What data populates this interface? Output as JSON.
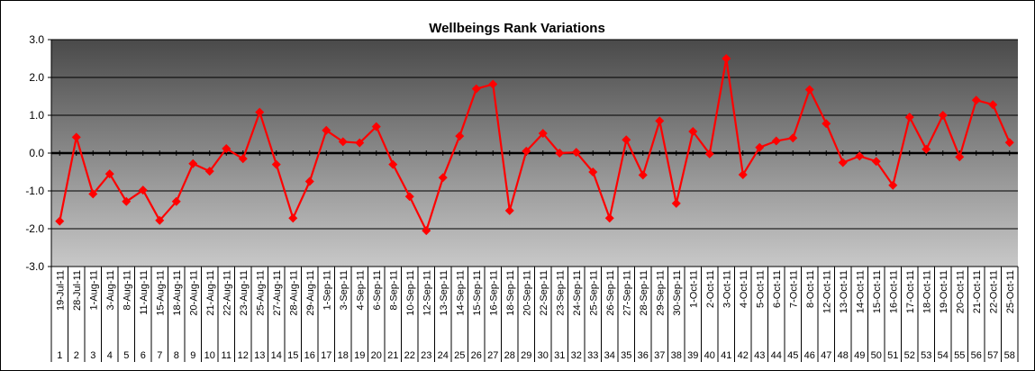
{
  "chart_data": {
    "type": "line",
    "title": "Wellbeings Rank Variations",
    "ylim": [
      -3.0,
      3.0
    ],
    "yticks": [
      "3.0",
      "2.0",
      "1.0",
      "0.0",
      "-1.0",
      "-2.0",
      "-3.0"
    ],
    "grid": true,
    "legend": "none",
    "colors": {
      "line": "#ff0000",
      "marker": "#ff0000",
      "grid": "#000000",
      "zero_line": "#000000",
      "plot_top": "#4a4a4a",
      "plot_bottom": "#c8c8c8"
    },
    "categories": [
      "19-Jul-11",
      "28-Jul-11",
      "1-Aug-11",
      "3-Aug-11",
      "8-Aug-11",
      "11-Aug-11",
      "15-Aug-11",
      "18-Aug-11",
      "20-Aug-11",
      "21-Aug-11",
      "22-Aug-11",
      "23-Aug-11",
      "25-Aug-11",
      "27-Aug-11",
      "28-Aug-11",
      "29-Aug-11",
      "1-Sep-11",
      "3-Sep-11",
      "4-Sep-11",
      "6-Sep-11",
      "8-Sep-11",
      "10-Sep-11",
      "12-Sep-11",
      "13-Sep-11",
      "14-Sep-11",
      "15-Sep-11",
      "16-Sep-11",
      "18-Sep-11",
      "20-Sep-11",
      "22-Sep-11",
      "23-Sep-11",
      "24-Sep-11",
      "25-Sep-11",
      "26-Sep-11",
      "27-Sep-11",
      "28-Sep-11",
      "29-Sep-11",
      "30-Sep-11",
      "1-Oct-11",
      "2-Oct-11",
      "3-Oct-11",
      "4-Oct-11",
      "5-Oct-11",
      "6-Oct-11",
      "7-Oct-11",
      "8-Oct-11",
      "12-Oct-11",
      "13-Oct-11",
      "14-Oct-11",
      "15-Oct-11",
      "16-Oct-11",
      "17-Oct-11",
      "18-Oct-11",
      "19-Oct-11",
      "20-Oct-11",
      "21-Oct-11",
      "22-Oct-11",
      "25-Oct-11"
    ],
    "indices": [
      "1",
      "2",
      "3",
      "4",
      "5",
      "6",
      "7",
      "8",
      "9",
      "10",
      "11",
      "12",
      "13",
      "14",
      "15",
      "16",
      "17",
      "18",
      "19",
      "20",
      "21",
      "22",
      "23",
      "24",
      "25",
      "26",
      "27",
      "28",
      "29",
      "30",
      "31",
      "32",
      "33",
      "34",
      "35",
      "36",
      "37",
      "38",
      "39",
      "40",
      "41",
      "42",
      "43",
      "44",
      "45",
      "46",
      "47",
      "48",
      "49",
      "50",
      "51",
      "52",
      "53",
      "54",
      "55",
      "56",
      "57",
      "58"
    ],
    "series": [
      {
        "values": [
          -1.8,
          0.42,
          -1.08,
          -0.55,
          -1.28,
          -0.98,
          -1.78,
          -1.28,
          -0.28,
          -0.48,
          0.12,
          -0.15,
          1.08,
          -0.3,
          -1.72,
          -0.75,
          0.6,
          0.3,
          0.27,
          0.7,
          -0.3,
          -1.15,
          -2.05,
          -0.65,
          0.45,
          1.7,
          1.82,
          -1.52,
          0.05,
          0.52,
          0.0,
          0.02,
          -0.5,
          -1.72,
          0.35,
          -0.58,
          0.85,
          -1.33,
          0.57,
          -0.02,
          2.5,
          -0.57,
          0.15,
          0.32,
          0.4,
          1.68,
          0.78,
          -0.25,
          -0.08,
          -0.22,
          -0.85,
          0.95,
          0.1,
          1.0,
          -0.1,
          1.4,
          1.28,
          0.28
        ]
      }
    ]
  }
}
